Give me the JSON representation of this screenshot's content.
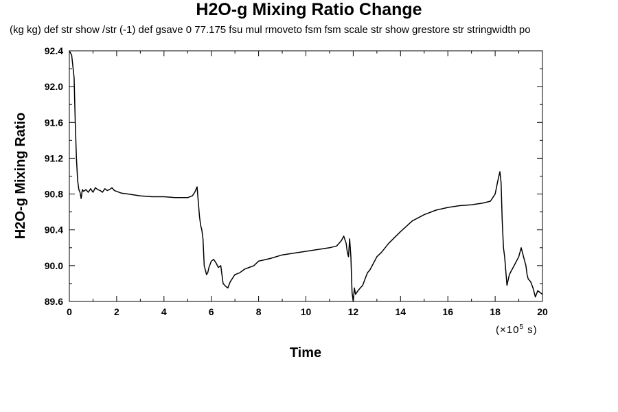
{
  "chart_data": {
    "type": "line",
    "title": "H2O-g Mixing Ratio Change",
    "subtitle": "(kg kg) def str show /str (-1) def gsave 0 77.175 fsu mul rmoveto fsm fsm scale str show grestore str stringwidth po",
    "xlabel": "Time",
    "ylabel": "H2O-g Mixing Ratio",
    "x_units_prefix": "(×10",
    "x_units_exponent": "5",
    "x_units_suffix": " s)",
    "xlim": [
      0,
      20
    ],
    "ylim": [
      89.6,
      92.4
    ],
    "x_ticks": [
      "0",
      "2",
      "4",
      "6",
      "8",
      "10",
      "12",
      "14",
      "16",
      "18",
      "20"
    ],
    "y_ticks": [
      "89.6",
      "90.0",
      "90.4",
      "90.8",
      "91.2",
      "91.6",
      "92.0",
      "92.4"
    ],
    "grid": false,
    "series": [
      {
        "x": [
          0,
          0.1,
          0.2,
          0.25,
          0.3,
          0.35,
          0.4,
          0.45,
          0.5,
          0.55,
          0.6,
          0.7,
          0.8,
          0.9,
          1.0,
          1.1,
          1.2,
          1.3,
          1.4,
          1.5,
          1.6,
          1.7,
          1.8,
          1.9,
          2.0,
          2.2,
          2.5,
          3.0,
          3.5,
          4.0,
          4.5,
          5.0,
          5.2,
          5.3,
          5.4,
          5.5,
          5.55,
          5.6,
          5.65,
          5.7,
          5.75,
          5.8,
          5.85,
          5.9,
          6.0,
          6.1,
          6.2,
          6.3,
          6.4,
          6.5,
          6.6,
          6.7,
          6.8,
          7.0,
          7.2,
          7.4,
          7.6,
          7.8,
          8.0,
          8.5,
          9.0,
          9.5,
          10.0,
          10.5,
          11.0,
          11.3,
          11.5,
          11.6,
          11.7,
          11.75,
          11.8,
          11.85,
          11.9,
          11.95,
          12.0,
          12.05,
          12.1,
          12.2,
          12.3,
          12.4,
          12.5,
          12.6,
          12.7,
          12.8,
          13.0,
          13.2,
          13.5,
          14.0,
          14.5,
          15.0,
          15.5,
          16.0,
          16.5,
          17.0,
          17.5,
          17.8,
          18.0,
          18.1,
          18.2,
          18.25,
          18.3,
          18.35,
          18.4,
          18.5,
          18.6,
          18.7,
          18.8,
          18.9,
          19.0,
          19.1,
          19.2,
          19.3,
          19.35,
          19.4,
          19.5,
          19.6,
          19.7,
          19.8,
          20.0
        ],
        "y": [
          92.4,
          92.35,
          92.1,
          91.6,
          91.2,
          90.95,
          90.85,
          90.82,
          90.75,
          90.85,
          90.83,
          90.85,
          90.82,
          90.86,
          90.82,
          90.87,
          90.85,
          90.84,
          90.82,
          90.86,
          90.84,
          90.85,
          90.87,
          90.84,
          90.83,
          90.81,
          90.8,
          90.78,
          90.77,
          90.77,
          90.76,
          90.76,
          90.78,
          90.82,
          90.88,
          90.55,
          90.45,
          90.4,
          90.3,
          90.0,
          89.95,
          89.9,
          89.92,
          89.98,
          90.05,
          90.07,
          90.03,
          89.98,
          90.0,
          89.8,
          89.77,
          89.75,
          89.82,
          89.9,
          89.92,
          89.96,
          89.98,
          90.0,
          90.05,
          90.08,
          90.12,
          90.14,
          90.16,
          90.18,
          90.2,
          90.22,
          90.28,
          90.33,
          90.25,
          90.15,
          90.1,
          90.3,
          90.1,
          89.7,
          89.6,
          89.75,
          89.68,
          89.72,
          89.75,
          89.78,
          89.85,
          89.92,
          89.95,
          90.0,
          90.1,
          90.15,
          90.25,
          90.38,
          90.5,
          90.57,
          90.62,
          90.65,
          90.67,
          90.68,
          90.7,
          90.72,
          90.8,
          90.93,
          91.05,
          90.93,
          90.5,
          90.2,
          90.1,
          89.78,
          89.9,
          89.95,
          90.0,
          90.05,
          90.1,
          90.2,
          90.1,
          90.0,
          89.9,
          89.85,
          89.82,
          89.75,
          89.65,
          89.72,
          89.68
        ]
      }
    ]
  }
}
